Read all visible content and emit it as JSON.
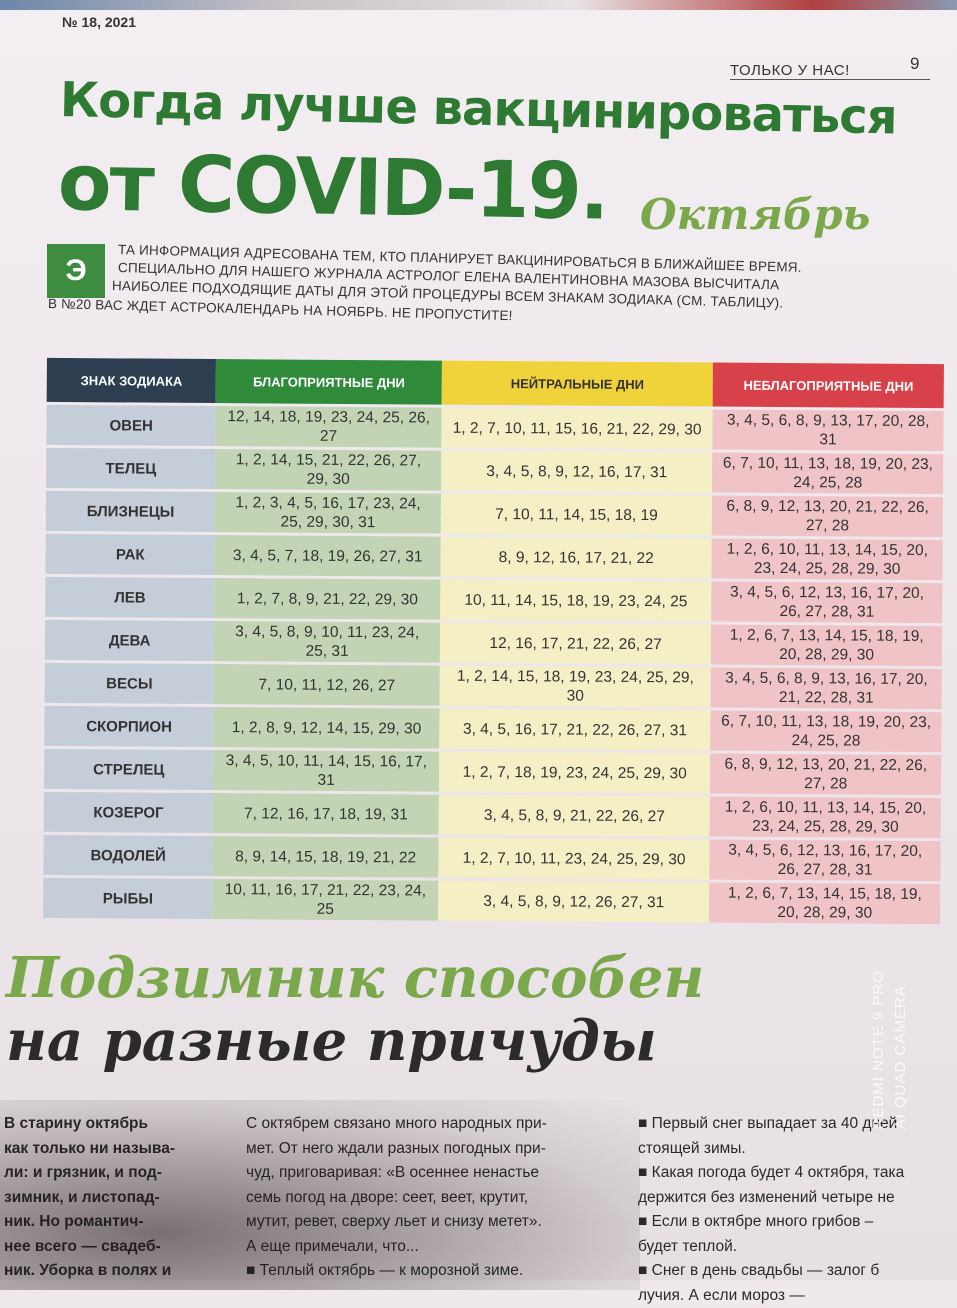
{
  "header": {
    "issue": "№ 18, 2021",
    "section": "ТОЛЬКО У НАС!",
    "page": "9"
  },
  "title": {
    "line1": "Когда лучше вакцинироваться",
    "line2": "от COVID-19.",
    "month": "Октябрь"
  },
  "intro": {
    "dropcap": "Э",
    "lines": [
      "ТА ИНФОРМАЦИЯ АДРЕСОВАНА ТЕМ, КТО ПЛАНИРУЕТ ВАКЦИНИРОВАТЬСЯ В БЛИЖАЙШЕЕ ВРЕМЯ.",
      "СПЕЦИАЛЬНО ДЛЯ НАШЕГО ЖУРНАЛА АСТРОЛОГ ЕЛЕНА ВАЛЕНТИНОВНА МАЗОВА ВЫСЧИТАЛА",
      "НАИБОЛЕЕ ПОДХОДЯЩИЕ ДАТЫ ДЛЯ ЭТОЙ ПРОЦЕДУРЫ ВСЕМ ЗНАКАМ ЗОДИАКА (СМ. ТАБЛИЦУ).",
      "В №20 ВАС ЖДЕТ АСТРОКАЛЕНДАРЬ НА НОЯБРЬ. НЕ ПРОПУСТИТЕ!"
    ]
  },
  "table": {
    "headers": [
      "ЗНАК ЗОДИАКА",
      "БЛАГОПРИЯТНЫЕ ДНИ",
      "НЕЙТРАЛЬНЫЕ ДНИ",
      "НЕБЛАГОПРИЯТНЫЕ ДНИ"
    ],
    "colors": {
      "sign": "#2c3e50",
      "favorable": "#2f8a3a",
      "neutral": "#f0d23a",
      "unfavorable": "#d8404a"
    },
    "rows": [
      [
        "ОВЕН",
        "12, 14, 18, 19, 23, 24, 25, 26, 27",
        "1, 2, 7, 10, 11, 15, 16, 21, 22, 29, 30",
        "3, 4, 5, 6, 8, 9, 13, 17, 20, 28, 31"
      ],
      [
        "ТЕЛЕЦ",
        "1, 2, 14, 15, 21, 22, 26, 27, 29, 30",
        "3, 4, 5, 8, 9, 12, 16, 17, 31",
        "6, 7, 10, 11, 13, 18, 19, 20, 23, 24, 25, 28"
      ],
      [
        "БЛИЗНЕЦЫ",
        "1, 2, 3, 4, 5, 16, 17, 23, 24, 25, 29, 30, 31",
        "7, 10, 11, 14, 15, 18, 19",
        "6, 8, 9, 12, 13, 20, 21, 22, 26, 27, 28"
      ],
      [
        "РАК",
        "3, 4, 5, 7, 18, 19, 26, 27, 31",
        "8, 9, 12, 16, 17, 21, 22",
        "1, 2, 6, 10, 11, 13, 14, 15, 20, 23, 24, 25, 28, 29, 30"
      ],
      [
        "ЛЕВ",
        "1, 2, 7, 8, 9, 21, 22, 29, 30",
        "10, 11, 14, 15, 18, 19, 23, 24, 25",
        "3, 4, 5, 6, 12, 13, 16, 17, 20, 26, 27, 28, 31"
      ],
      [
        "ДЕВА",
        "3, 4, 5, 8, 9, 10, 11, 23, 24, 25, 31",
        "12, 16, 17, 21, 22, 26, 27",
        "1, 2, 6, 7, 13, 14, 15, 18, 19, 20, 28, 29, 30"
      ],
      [
        "ВЕСЫ",
        "7, 10, 11, 12, 26, 27",
        "1, 2, 14, 15, 18, 19, 23, 24, 25, 29, 30",
        "3, 4, 5, 6, 8, 9, 13, 16, 17, 20, 21, 22, 28, 31"
      ],
      [
        "СКОРПИОН",
        "1, 2, 8, 9, 12, 14, 15, 29, 30",
        "3, 4, 5, 16, 17, 21, 22, 26, 27, 31",
        "6, 7, 10, 11, 13, 18, 19, 20, 23, 24, 25, 28"
      ],
      [
        "СТРЕЛЕЦ",
        "3, 4, 5, 10, 11, 14, 15, 16, 17, 31",
        "1, 2, 7, 18, 19, 23, 24, 25, 29, 30",
        "6, 8, 9, 12, 13, 20, 21, 22, 26, 27, 28"
      ],
      [
        "КОЗЕРОГ",
        "7, 12, 16, 17, 18, 19, 31",
        "3, 4, 5, 8, 9, 21, 22, 26, 27",
        "1, 2, 6, 10, 11, 13, 14, 15, 20, 23, 24, 25, 28, 29, 30"
      ],
      [
        "ВОДОЛЕЙ",
        "8, 9, 14, 15, 18, 19, 21, 22",
        "1, 2, 7, 10, 11, 23, 24, 25, 29, 30",
        "3, 4, 5, 6, 12, 13, 16, 17, 20, 26, 27, 28, 31"
      ],
      [
        "РЫБЫ",
        "10, 11, 16, 17, 21, 22, 23, 24, 25",
        "3, 4, 5, 8, 9, 12, 26, 27, 31",
        "1, 2, 6, 7, 13, 14, 15, 18, 19, 20, 28, 29, 30"
      ]
    ]
  },
  "article": {
    "title_line1": "Подзимник способен",
    "title_line2": "на разные причуды",
    "col1": [
      "В старину октябрь",
      "как только ни называ-",
      "ли: и грязник, и под-",
      "зимник, и листопад-",
      "ник. Но романтич-",
      "нее всего — свадеб-",
      "ник. Уборка в полях и"
    ],
    "col2": [
      "С октябрем связано много народных при-",
      "мет. От него ждали разных погодных при-",
      "чуд, приговаривая: «В осеннее ненастье",
      "семь погод на дворе: сеет, веет, крутит,",
      "мутит, ревет, сверху льет и снизу метет».",
      "А еще примечали, что...",
      "■ Теплый октябрь — к морозной зиме."
    ],
    "col3": [
      "■ Первый снег выпадает за 40 дней",
      "стоящей зимы.",
      "■ Какая погода будет 4 октября, така",
      "держится без изменений четыре не",
      "■ Если в октябре много грибов –",
      "будет теплой.",
      "■ Снег в день свадьбы — залог б",
      "лучия. А если мороз —"
    ]
  },
  "watermark": {
    "line1": "REDMI NOTE 9 PRO",
    "line2": "AI QUAD CAMERA"
  }
}
